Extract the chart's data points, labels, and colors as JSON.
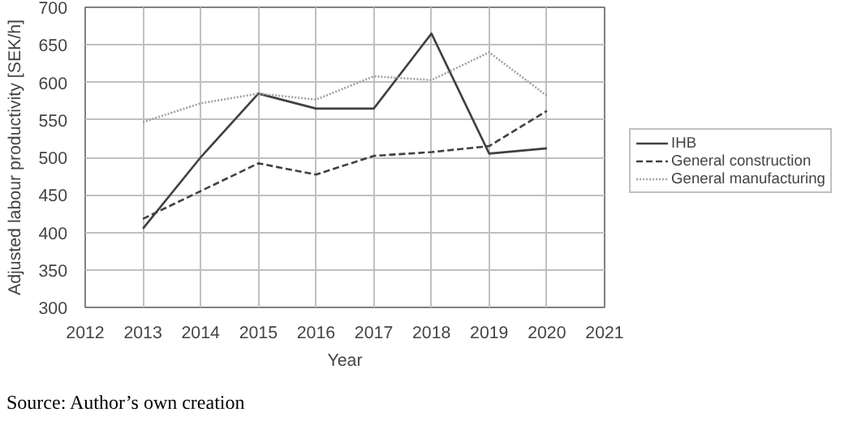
{
  "chart_data": {
    "type": "line",
    "xlabel": "Year",
    "ylabel": "Adjusted labour productivity [SEK/h]",
    "x": [
      2013,
      2014,
      2015,
      2016,
      2017,
      2018,
      2019,
      2020
    ],
    "series": [
      {
        "name": "IHB",
        "color": "#404040",
        "line_style": "solid",
        "values": [
          405,
          500,
          585,
          565,
          565,
          665,
          505,
          512
        ]
      },
      {
        "name": "General construction",
        "color": "#404040",
        "line_style": "dashed",
        "values": [
          418,
          455,
          492,
          477,
          502,
          507,
          515,
          562
        ]
      },
      {
        "name": "General manufacturing",
        "color": "#a0a0a0",
        "line_style": "dotted",
        "values": [
          547,
          572,
          585,
          577,
          608,
          603,
          640,
          582
        ]
      }
    ],
    "xlim": [
      2012,
      2021
    ],
    "xticks": [
      2012,
      2013,
      2014,
      2015,
      2016,
      2017,
      2018,
      2019,
      2020,
      2021
    ],
    "ylim": [
      300,
      700
    ],
    "yticks": [
      300,
      350,
      400,
      450,
      500,
      550,
      600,
      650,
      700
    ],
    "grid": true,
    "legend": "right",
    "marker": "none",
    "annotations": [
      "Source: Author’s own creation"
    ]
  }
}
